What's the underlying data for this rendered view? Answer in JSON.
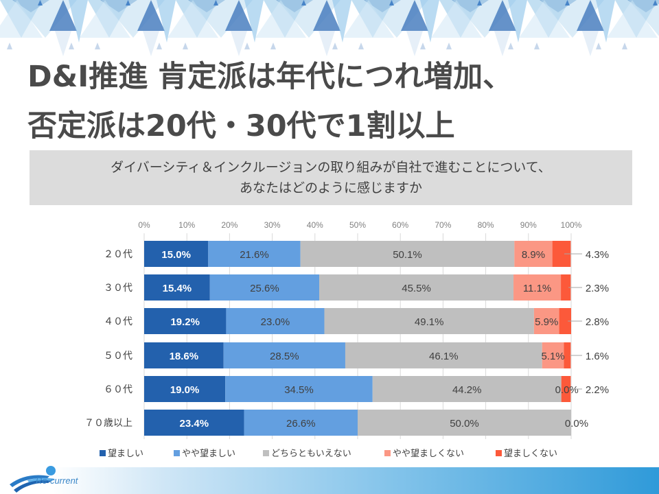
{
  "slide": {
    "title_line1": "D&I推進 肯定派は年代につれ増加、",
    "title_line2": "否定派は20代・30代で1割以上",
    "question_line1": "ダイバーシティ＆インクルージョンの取り組みが自社で進むことについて、",
    "question_line2": "あなたはどのように感じますか",
    "logo_text": "Re·current"
  },
  "colors": {
    "series": [
      "#2361ad",
      "#639fe0",
      "#bfbfbf",
      "#fb9784",
      "#fc593a"
    ],
    "label_light": "#ffffff",
    "label_dark": "#404040",
    "grid": "#d9d9d9",
    "axis_text": "#7f7f7f"
  },
  "chart_data": {
    "type": "bar",
    "orientation": "horizontal",
    "stacked": "percent",
    "title": "ダイバーシティ＆インクルージョンの取り組みが自社で進むことについて、あなたはどのように感じますか",
    "xlabel": "",
    "ylabel": "",
    "xlim": [
      0,
      100
    ],
    "x_ticks": [
      "0%",
      "10%",
      "20%",
      "30%",
      "40%",
      "50%",
      "60%",
      "70%",
      "80%",
      "90%",
      "100%"
    ],
    "grid": true,
    "legend_position": "bottom",
    "categories": [
      "２０代",
      "３０代",
      "４０代",
      "５０代",
      "６０代",
      "７０歳以上"
    ],
    "series": [
      {
        "name": "望ましい",
        "values": [
          15.0,
          15.4,
          19.2,
          18.6,
          19.0,
          23.4
        ],
        "labels": [
          "15.0%",
          "15.4%",
          "19.2%",
          "18.6%",
          "19.0%",
          "23.4%"
        ]
      },
      {
        "name": "やや望ましい",
        "values": [
          21.6,
          25.6,
          23.0,
          28.5,
          34.5,
          26.6
        ],
        "labels": [
          "21.6%",
          "25.6%",
          "23.0%",
          "28.5%",
          "34.5%",
          "26.6%"
        ]
      },
      {
        "name": "どちらともいえない",
        "values": [
          50.1,
          45.5,
          49.1,
          46.1,
          44.2,
          50.0
        ],
        "labels": [
          "50.1%",
          "45.5%",
          "49.1%",
          "46.1%",
          "44.2%",
          "50.0%"
        ]
      },
      {
        "name": "やや望ましくない",
        "values": [
          8.9,
          11.1,
          5.9,
          5.1,
          0.0,
          0.0
        ],
        "labels": [
          "8.9%",
          "11.1%",
          "5.9%",
          "5.1%",
          "0.0%",
          "0.0%"
        ]
      },
      {
        "name": "望ましくない",
        "values": [
          4.3,
          2.3,
          2.8,
          1.6,
          2.2,
          0.0
        ],
        "labels": [
          "4.3%",
          "2.3%",
          "2.8%",
          "1.6%",
          "2.2%",
          ""
        ]
      }
    ]
  }
}
